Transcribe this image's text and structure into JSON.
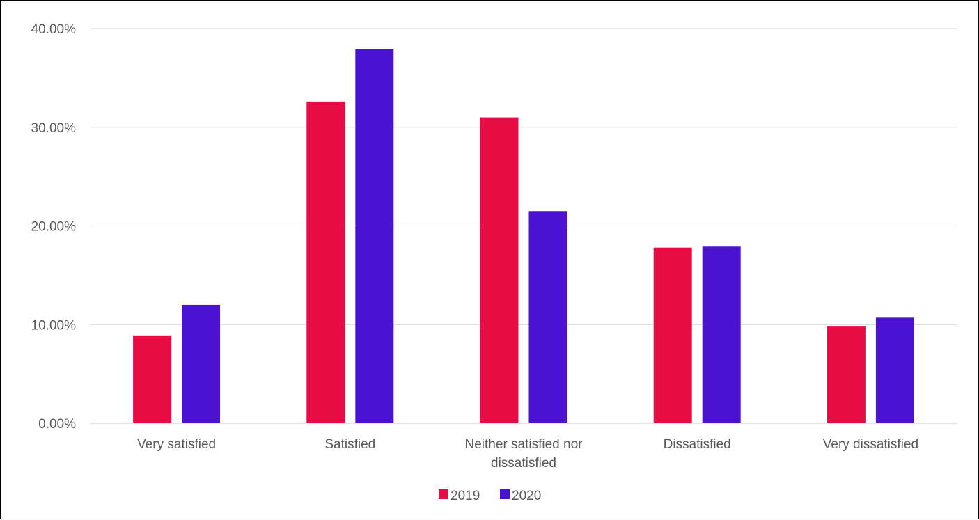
{
  "chart_data": {
    "type": "bar",
    "categories": [
      [
        "Very satisfied"
      ],
      [
        "Satisfied"
      ],
      [
        "Neither satisfied nor",
        "dissatisfied"
      ],
      [
        "Dissatisfied"
      ],
      [
        "Very dissatisfied"
      ]
    ],
    "series": [
      {
        "name": "2019",
        "color": "#e80c45",
        "values": [
          8.9,
          32.6,
          31.0,
          17.8,
          9.8
        ]
      },
      {
        "name": "2020",
        "color": "#4b12d4",
        "values": [
          12.0,
          37.9,
          21.5,
          17.9,
          10.7
        ]
      }
    ],
    "y_ticks": [
      "0.00%",
      "10.00%",
      "20.00%",
      "30.00%",
      "40.00%"
    ],
    "ylim": [
      0,
      40
    ],
    "grid": true,
    "legend": "bottom"
  }
}
